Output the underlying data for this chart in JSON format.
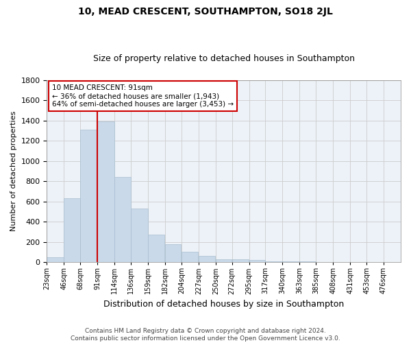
{
  "title": "10, MEAD CRESCENT, SOUTHAMPTON, SO18 2JL",
  "subtitle": "Size of property relative to detached houses in Southampton",
  "xlabel": "Distribution of detached houses by size in Southampton",
  "ylabel": "Number of detached properties",
  "footer_line1": "Contains HM Land Registry data © Crown copyright and database right 2024.",
  "footer_line2": "Contains public sector information licensed under the Open Government Licence v3.0.",
  "annotation_line1": "10 MEAD CRESCENT: 91sqm",
  "annotation_line2": "← 36% of detached houses are smaller (1,943)",
  "annotation_line3": "64% of semi-detached houses are larger (3,453) →",
  "red_line_x": 91,
  "bar_color": "#c9d9ea",
  "bar_edge_color": "#a8bece",
  "red_line_color": "#cc0000",
  "grid_color": "#cccccc",
  "background_color": "#edf2f8",
  "categories": [
    "23sqm",
    "46sqm",
    "68sqm",
    "91sqm",
    "114sqm",
    "136sqm",
    "159sqm",
    "182sqm",
    "204sqm",
    "227sqm",
    "250sqm",
    "272sqm",
    "295sqm",
    "317sqm",
    "340sqm",
    "363sqm",
    "385sqm",
    "408sqm",
    "431sqm",
    "453sqm",
    "476sqm"
  ],
  "bin_edges": [
    23,
    46,
    68,
    91,
    114,
    136,
    159,
    182,
    204,
    227,
    250,
    272,
    295,
    317,
    340,
    363,
    385,
    408,
    431,
    453,
    476,
    499
  ],
  "values": [
    50,
    630,
    1310,
    1390,
    840,
    530,
    270,
    180,
    100,
    65,
    30,
    28,
    20,
    10,
    8,
    5,
    3,
    2,
    2,
    1,
    2
  ],
  "ylim": [
    0,
    1800
  ],
  "yticks": [
    0,
    200,
    400,
    600,
    800,
    1000,
    1200,
    1400,
    1600,
    1800
  ],
  "title_fontsize": 10,
  "subtitle_fontsize": 9,
  "ylabel_fontsize": 8,
  "xlabel_fontsize": 9,
  "ytick_fontsize": 8,
  "xtick_fontsize": 7,
  "annotation_fontsize": 7.5,
  "footer_fontsize": 6.5
}
